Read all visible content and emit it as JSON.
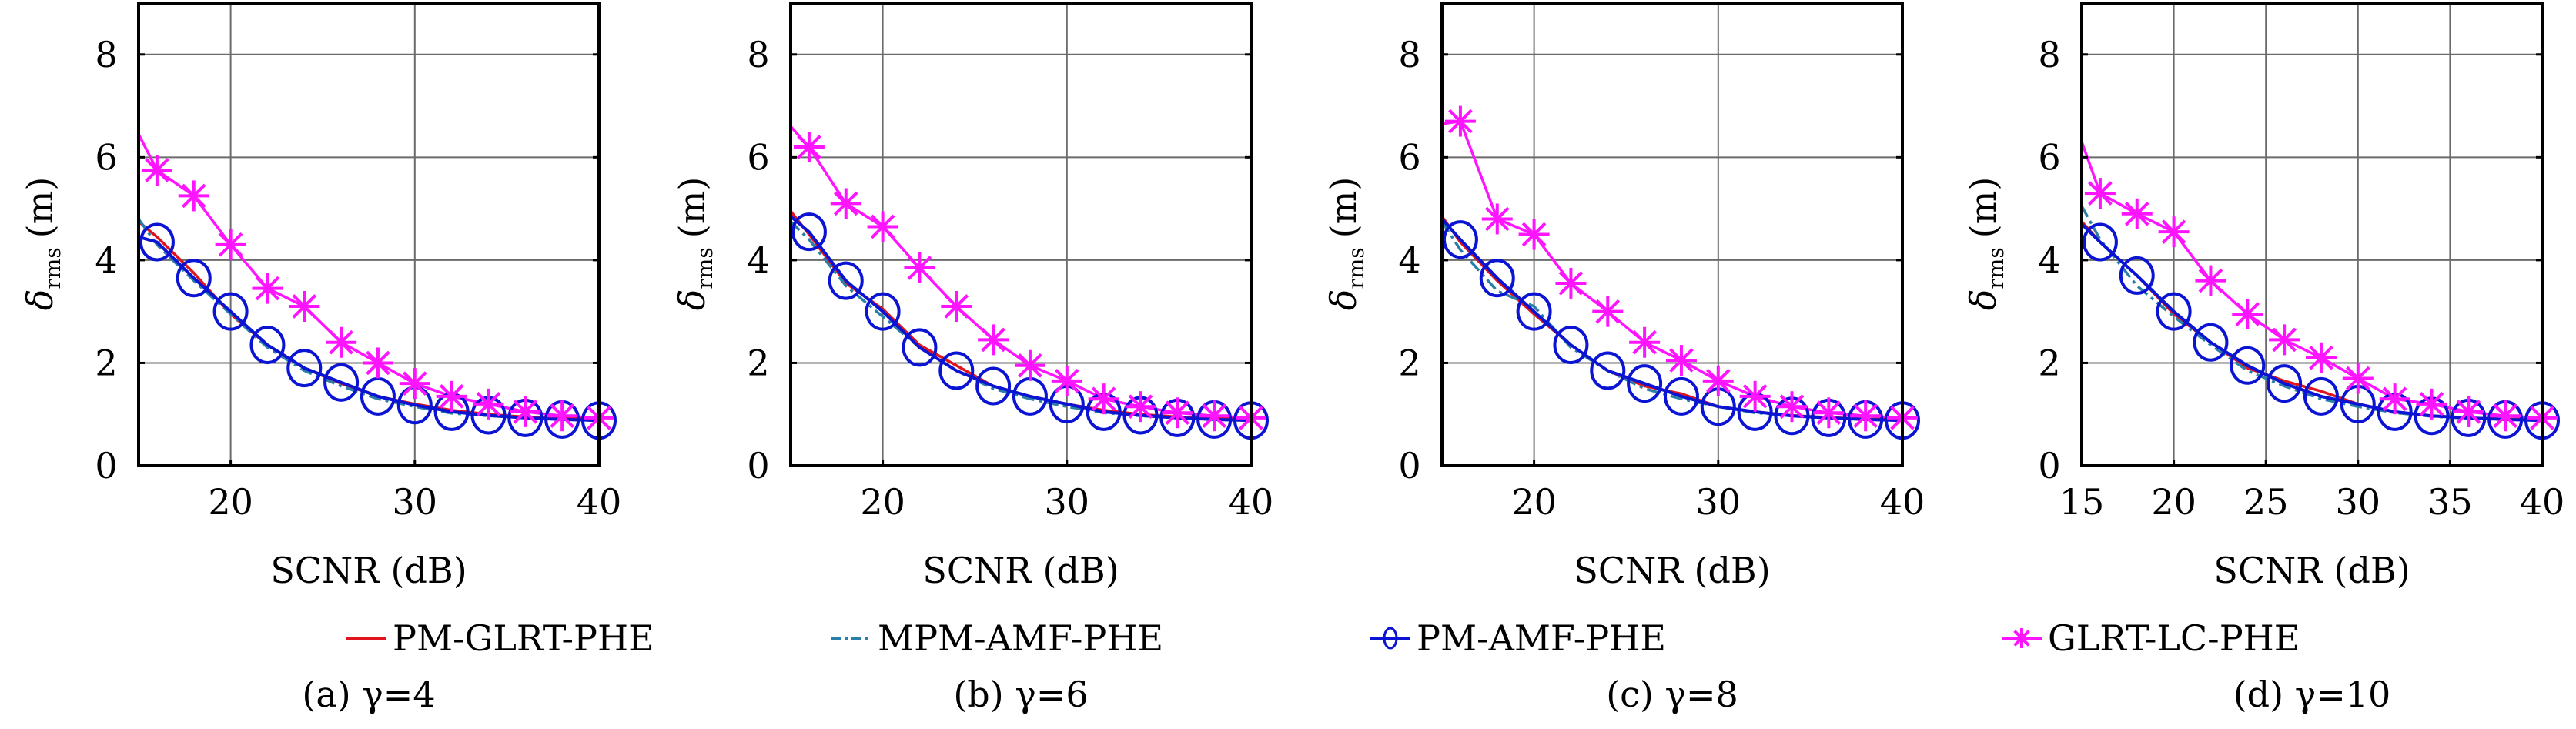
{
  "figure": {
    "legend": [
      {
        "key": "pm_glrt",
        "label": "PM-GLRT-PHE",
        "color": "#e0141e",
        "style": "solid",
        "marker": "none"
      },
      {
        "key": "mpm_amf",
        "label": "MPM-AMF-PHE",
        "color": "#2a7fa8",
        "style": "dashdot",
        "marker": "none"
      },
      {
        "key": "pm_amf",
        "label": "PM-AMF-PHE",
        "color": "#0a14d2",
        "style": "solid",
        "marker": "circle"
      },
      {
        "key": "glrt_lc",
        "label": "GLRT-LC-PHE",
        "color": "#ff14ff",
        "style": "solid",
        "marker": "star"
      }
    ],
    "legend_placement": "bottom-center"
  },
  "chart_data": [
    {
      "type": "line",
      "id": "a",
      "caption": "(a) γ=4",
      "xlabel": "SCNR (dB)",
      "ylabel_main": "δ",
      "ylabel_sub": "rms",
      "ylabel_unit": "(m)",
      "xlim": [
        15,
        40
      ],
      "ylim": [
        0,
        9
      ],
      "xticks": [
        20,
        30,
        40
      ],
      "yticks": [
        0,
        2,
        4,
        6,
        8
      ],
      "grid": true,
      "x": [
        15,
        16,
        18,
        20,
        22,
        24,
        26,
        28,
        30,
        32,
        34,
        36,
        38,
        40
      ],
      "series": [
        {
          "key": "pm_glrt",
          "name": "PM-GLRT-PHE",
          "values": [
            4.75,
            4.45,
            3.75,
            2.95,
            2.35,
            1.9,
            1.6,
            1.35,
            1.2,
            1.08,
            1.0,
            0.95,
            0.92,
            0.9
          ]
        },
        {
          "key": "mpm_amf",
          "name": "MPM-AMF-PHE",
          "values": [
            4.8,
            4.3,
            3.6,
            2.95,
            2.3,
            1.85,
            1.55,
            1.3,
            1.15,
            1.02,
            0.97,
            0.93,
            0.9,
            0.88
          ]
        },
        {
          "key": "pm_amf",
          "name": "PM-AMF-PHE",
          "values": [
            4.45,
            4.35,
            3.65,
            3.0,
            2.35,
            1.9,
            1.62,
            1.35,
            1.18,
            1.05,
            0.98,
            0.93,
            0.9,
            0.88
          ]
        },
        {
          "key": "glrt_lc",
          "name": "GLRT-LC-PHE",
          "values": [
            6.45,
            5.75,
            5.25,
            4.3,
            3.45,
            3.1,
            2.4,
            2.0,
            1.6,
            1.35,
            1.2,
            1.05,
            0.97,
            0.93
          ]
        }
      ]
    },
    {
      "type": "line",
      "id": "b",
      "caption": "(b) γ=6",
      "xlabel": "SCNR (dB)",
      "ylabel_main": "δ",
      "ylabel_sub": "rms",
      "ylabel_unit": "(m)",
      "xlim": [
        15,
        40
      ],
      "ylim": [
        0,
        9
      ],
      "xticks": [
        20,
        30,
        40
      ],
      "yticks": [
        0,
        2,
        4,
        6,
        8
      ],
      "grid": true,
      "x": [
        15,
        16,
        18,
        20,
        22,
        24,
        26,
        28,
        30,
        32,
        34,
        36,
        38,
        40
      ],
      "series": [
        {
          "key": "pm_glrt",
          "name": "PM-GLRT-PHE",
          "values": [
            4.95,
            4.5,
            3.55,
            3.05,
            2.35,
            1.95,
            1.55,
            1.35,
            1.2,
            1.08,
            1.0,
            0.95,
            0.92,
            0.9
          ]
        },
        {
          "key": "mpm_amf",
          "name": "MPM-AMF-PHE",
          "values": [
            4.75,
            4.4,
            3.5,
            2.9,
            2.3,
            1.85,
            1.5,
            1.3,
            1.15,
            1.03,
            0.97,
            0.93,
            0.9,
            0.88
          ]
        },
        {
          "key": "pm_amf",
          "name": "PM-AMF-PHE",
          "values": [
            4.85,
            4.55,
            3.6,
            3.0,
            2.3,
            1.85,
            1.55,
            1.35,
            1.2,
            1.05,
            0.98,
            0.93,
            0.9,
            0.88
          ]
        },
        {
          "key": "glrt_lc",
          "name": "GLRT-LC-PHE",
          "values": [
            6.6,
            6.2,
            5.1,
            4.65,
            3.85,
            3.1,
            2.45,
            1.95,
            1.65,
            1.3,
            1.15,
            1.03,
            0.97,
            0.93
          ]
        }
      ]
    },
    {
      "type": "line",
      "id": "c",
      "caption": "(c) γ=8",
      "xlabel": "SCNR (dB)",
      "ylabel_main": "δ",
      "ylabel_sub": "rms",
      "ylabel_unit": "(m)",
      "xlim": [
        15,
        40
      ],
      "ylim": [
        0,
        9
      ],
      "xticks": [
        20,
        30,
        40
      ],
      "yticks": [
        0,
        2,
        4,
        6,
        8
      ],
      "grid": true,
      "x": [
        15,
        16,
        18,
        20,
        22,
        24,
        26,
        28,
        30,
        32,
        34,
        36,
        38,
        40
      ],
      "series": [
        {
          "key": "pm_glrt",
          "name": "PM-GLRT-PHE",
          "values": [
            4.85,
            4.35,
            3.6,
            2.95,
            2.35,
            1.85,
            1.55,
            1.4,
            1.15,
            1.05,
            0.98,
            0.94,
            0.91,
            0.9
          ]
        },
        {
          "key": "mpm_amf",
          "name": "MPM-AMF-PHE",
          "values": [
            4.75,
            4.2,
            3.4,
            3.1,
            2.3,
            1.85,
            1.5,
            1.3,
            1.15,
            1.03,
            0.97,
            0.93,
            0.9,
            0.88
          ]
        },
        {
          "key": "pm_amf",
          "name": "PM-AMF-PHE",
          "values": [
            4.8,
            4.4,
            3.65,
            3.0,
            2.35,
            1.85,
            1.6,
            1.35,
            1.15,
            1.05,
            0.97,
            0.93,
            0.9,
            0.88
          ]
        },
        {
          "key": "glrt_lc",
          "name": "GLRT-LC-PHE",
          "values": [
            6.65,
            6.7,
            4.8,
            4.5,
            3.55,
            3.0,
            2.4,
            2.05,
            1.65,
            1.35,
            1.15,
            1.03,
            0.97,
            0.93
          ]
        }
      ]
    },
    {
      "type": "line",
      "id": "d",
      "caption": "(d) γ=10",
      "xlabel": "SCNR (dB)",
      "ylabel_main": "δ",
      "ylabel_sub": "rms",
      "ylabel_unit": "(m)",
      "xlim": [
        15,
        40
      ],
      "ylim": [
        0,
        9
      ],
      "xticks": [
        15,
        20,
        25,
        30,
        35,
        40
      ],
      "yticks": [
        0,
        2,
        4,
        6,
        8
      ],
      "grid": true,
      "x": [
        15,
        16,
        18,
        20,
        22,
        24,
        26,
        28,
        30,
        32,
        34,
        36,
        38,
        40
      ],
      "series": [
        {
          "key": "pm_glrt",
          "name": "PM-GLRT-PHE",
          "values": [
            4.75,
            4.35,
            3.7,
            2.95,
            2.4,
            1.9,
            1.65,
            1.45,
            1.2,
            1.05,
            0.97,
            0.93,
            0.91,
            0.9
          ]
        },
        {
          "key": "mpm_amf",
          "name": "MPM-AMF-PHE",
          "values": [
            5.05,
            4.4,
            3.5,
            2.9,
            2.35,
            1.85,
            1.55,
            1.3,
            1.15,
            1.03,
            0.96,
            0.92,
            0.9,
            0.88
          ]
        },
        {
          "key": "pm_amf",
          "name": "PM-AMF-PHE",
          "values": [
            4.7,
            4.35,
            3.7,
            3.0,
            2.4,
            1.95,
            1.6,
            1.35,
            1.2,
            1.05,
            0.97,
            0.93,
            0.9,
            0.88
          ]
        },
        {
          "key": "glrt_lc",
          "name": "GLRT-LC-PHE",
          "values": [
            6.3,
            5.3,
            4.9,
            4.55,
            3.6,
            2.95,
            2.45,
            2.1,
            1.7,
            1.3,
            1.2,
            1.05,
            0.97,
            0.93
          ]
        }
      ]
    }
  ]
}
